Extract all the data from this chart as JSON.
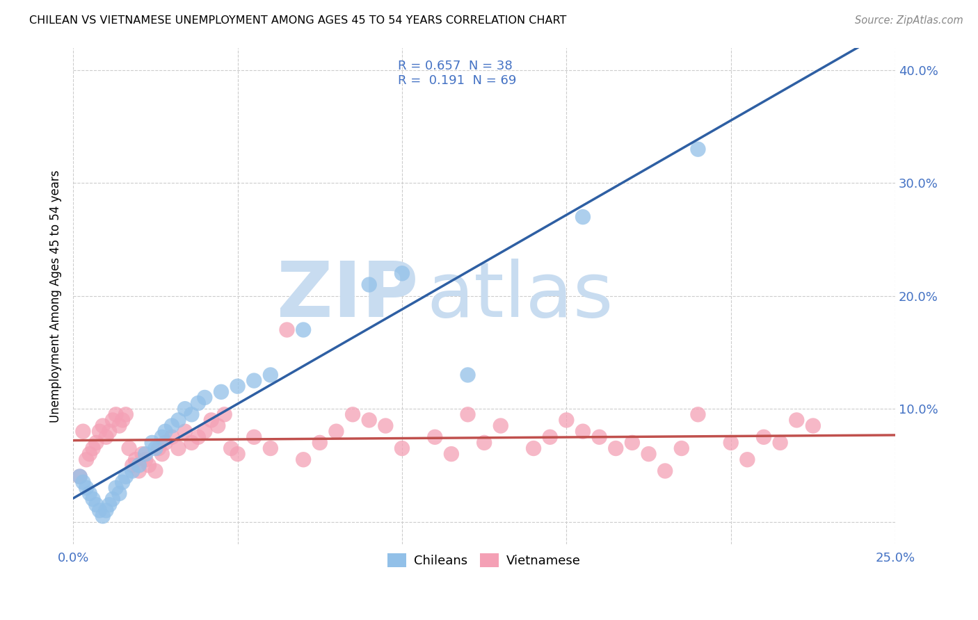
{
  "title": "CHILEAN VS VIETNAMESE UNEMPLOYMENT AMONG AGES 45 TO 54 YEARS CORRELATION CHART",
  "source": "Source: ZipAtlas.com",
  "ylabel": "Unemployment Among Ages 45 to 54 years",
  "xlim": [
    0.0,
    0.25
  ],
  "ylim": [
    -0.02,
    0.42
  ],
  "x_ticks": [
    0.0,
    0.05,
    0.1,
    0.15,
    0.2,
    0.25
  ],
  "y_ticks": [
    0.0,
    0.1,
    0.2,
    0.3,
    0.4
  ],
  "chilean_R": 0.657,
  "chilean_N": 38,
  "vietnamese_R": 0.191,
  "vietnamese_N": 69,
  "chilean_color": "#92C0E8",
  "vietnamese_color": "#F4A0B5",
  "chilean_line_color": "#2E5FA3",
  "vietnamese_line_color": "#C0504D",
  "background_color": "#FFFFFF",
  "watermark_zip": "ZIP",
  "watermark_atlas": "atlas",
  "watermark_color_zip": "#C8DCF0",
  "watermark_color_atlas": "#C8DCF0",
  "grid_color": "#CCCCCC",
  "chilean_x": [
    0.002,
    0.003,
    0.004,
    0.005,
    0.006,
    0.007,
    0.008,
    0.009,
    0.01,
    0.011,
    0.012,
    0.013,
    0.014,
    0.015,
    0.016,
    0.018,
    0.02,
    0.022,
    0.024,
    0.025,
    0.027,
    0.028,
    0.03,
    0.032,
    0.034,
    0.036,
    0.038,
    0.04,
    0.045,
    0.05,
    0.055,
    0.06,
    0.07,
    0.09,
    0.1,
    0.12,
    0.155,
    0.19
  ],
  "chilean_y": [
    0.04,
    0.035,
    0.03,
    0.025,
    0.02,
    0.015,
    0.01,
    0.005,
    0.01,
    0.015,
    0.02,
    0.03,
    0.025,
    0.035,
    0.04,
    0.045,
    0.05,
    0.06,
    0.07,
    0.065,
    0.075,
    0.08,
    0.085,
    0.09,
    0.1,
    0.095,
    0.105,
    0.11,
    0.115,
    0.12,
    0.125,
    0.13,
    0.17,
    0.21,
    0.22,
    0.13,
    0.27,
    0.33
  ],
  "vietnamese_x": [
    0.002,
    0.003,
    0.004,
    0.005,
    0.006,
    0.007,
    0.008,
    0.009,
    0.01,
    0.011,
    0.012,
    0.013,
    0.014,
    0.015,
    0.016,
    0.017,
    0.018,
    0.019,
    0.02,
    0.021,
    0.022,
    0.023,
    0.025,
    0.026,
    0.027,
    0.028,
    0.03,
    0.032,
    0.034,
    0.036,
    0.038,
    0.04,
    0.042,
    0.044,
    0.046,
    0.048,
    0.05,
    0.055,
    0.06,
    0.065,
    0.07,
    0.075,
    0.08,
    0.085,
    0.09,
    0.095,
    0.1,
    0.11,
    0.115,
    0.12,
    0.125,
    0.13,
    0.14,
    0.145,
    0.15,
    0.155,
    0.16,
    0.165,
    0.17,
    0.175,
    0.18,
    0.185,
    0.19,
    0.2,
    0.205,
    0.21,
    0.215,
    0.22,
    0.225
  ],
  "vietnamese_y": [
    0.04,
    0.08,
    0.055,
    0.06,
    0.065,
    0.07,
    0.08,
    0.085,
    0.075,
    0.08,
    0.09,
    0.095,
    0.085,
    0.09,
    0.095,
    0.065,
    0.05,
    0.055,
    0.045,
    0.06,
    0.055,
    0.05,
    0.045,
    0.065,
    0.06,
    0.07,
    0.075,
    0.065,
    0.08,
    0.07,
    0.075,
    0.08,
    0.09,
    0.085,
    0.095,
    0.065,
    0.06,
    0.075,
    0.065,
    0.17,
    0.055,
    0.07,
    0.08,
    0.095,
    0.09,
    0.085,
    0.065,
    0.075,
    0.06,
    0.095,
    0.07,
    0.085,
    0.065,
    0.075,
    0.09,
    0.08,
    0.075,
    0.065,
    0.07,
    0.06,
    0.045,
    0.065,
    0.095,
    0.07,
    0.055,
    0.075,
    0.07,
    0.09,
    0.085
  ]
}
